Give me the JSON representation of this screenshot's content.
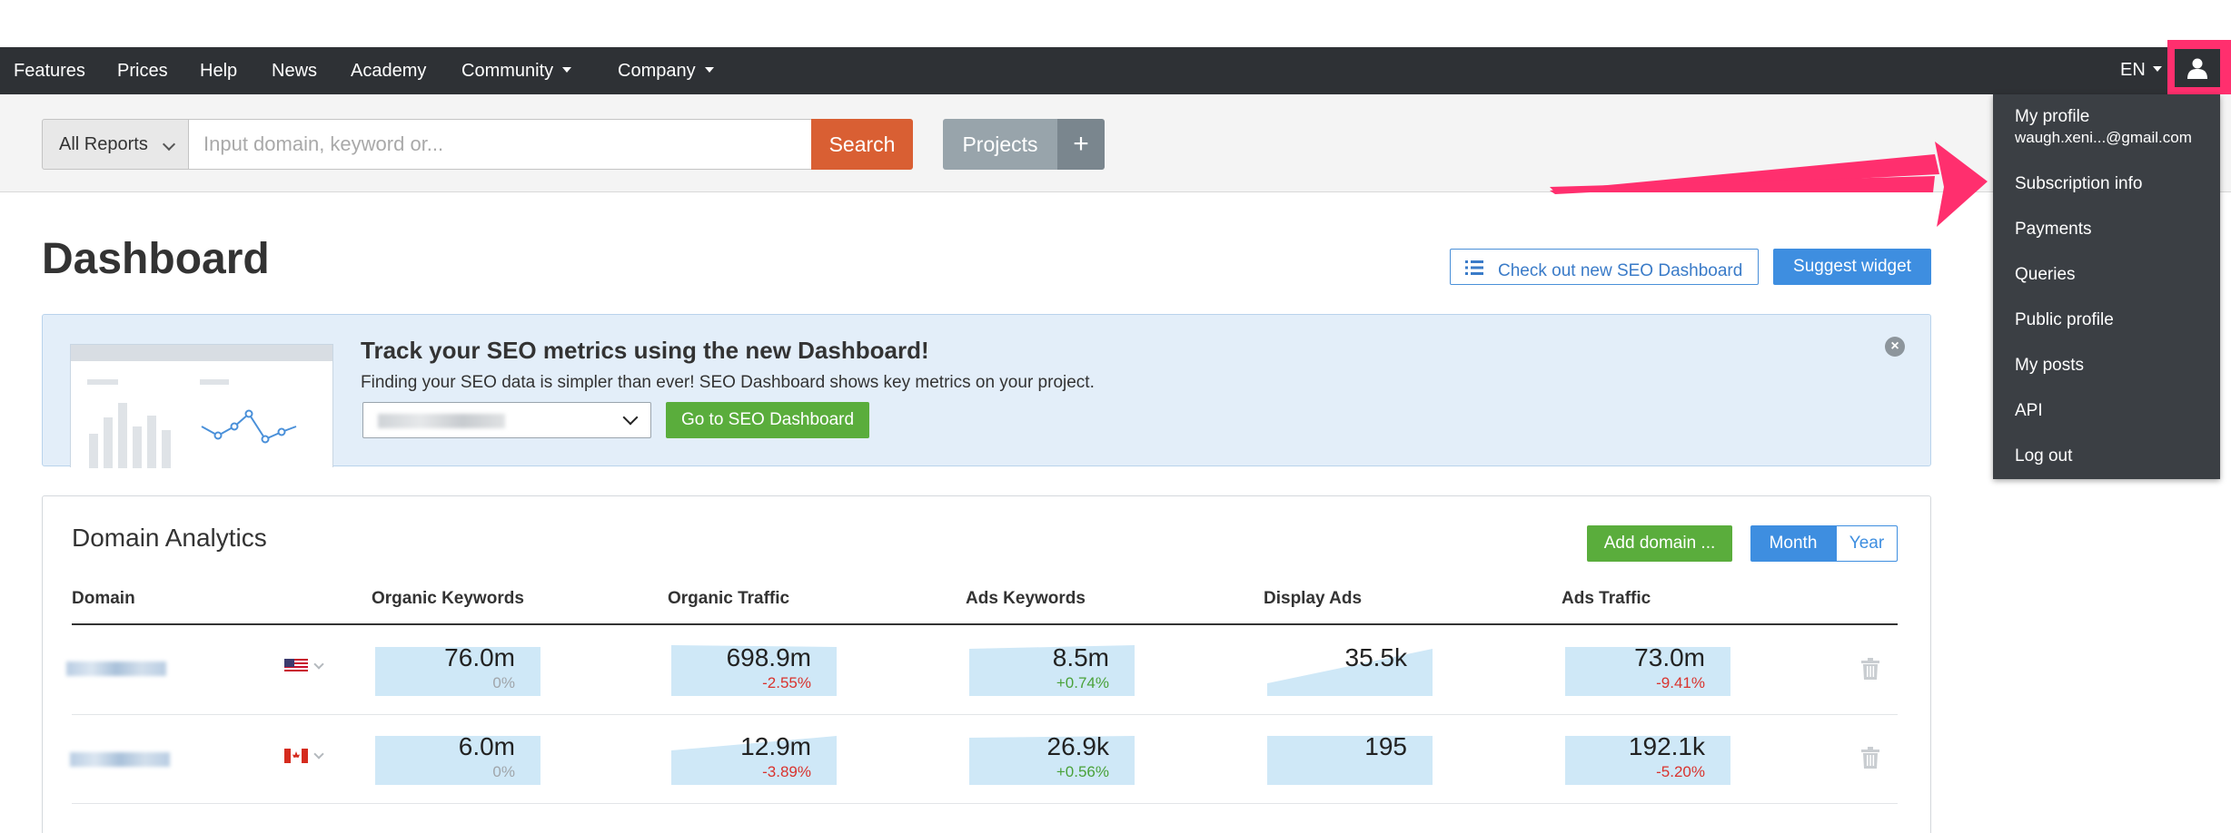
{
  "nav": {
    "items": [
      "Features",
      "Prices",
      "Help",
      "News",
      "Academy",
      "Community",
      "Company"
    ],
    "language": "EN"
  },
  "search": {
    "reports_label": "All Reports",
    "placeholder": "Input domain, keyword or...",
    "search_label": "Search",
    "projects_label": "Projects",
    "plus_label": "+"
  },
  "page": {
    "title": "Dashboard",
    "seo_dashboard_button": "Check out new SEO Dashboard",
    "suggest_widget_button": "Suggest widget"
  },
  "banner": {
    "title": "Track your SEO metrics using the new Dashboard!",
    "text": "Finding your SEO data is simpler than ever! SEO Dashboard shows key metrics on your project.",
    "button": "Go to SEO Dashboard"
  },
  "domain_analytics": {
    "title": "Domain Analytics",
    "add_domain_button": "Add domain ...",
    "period_month": "Month",
    "period_year": "Year",
    "columns": [
      "Domain",
      "Organic Keywords",
      "Organic Traffic",
      "Ads Keywords",
      "Display Ads",
      "Ads Traffic"
    ],
    "rows": [
      {
        "flag": "us-flag-icon",
        "metrics": [
          {
            "value": "76.0m",
            "change": "0%",
            "trend": "neutral"
          },
          {
            "value": "698.9m",
            "change": "-2.55%",
            "trend": "neg"
          },
          {
            "value": "8.5m",
            "change": "+0.74%",
            "trend": "pos"
          },
          {
            "value": "35.5k",
            "change": "",
            "trend": "neutral"
          },
          {
            "value": "73.0m",
            "change": "-9.41%",
            "trend": "neg"
          }
        ]
      },
      {
        "flag": "ca-flag-icon",
        "metrics": [
          {
            "value": "6.0m",
            "change": "0%",
            "trend": "neutral"
          },
          {
            "value": "12.9m",
            "change": "-3.89%",
            "trend": "neg"
          },
          {
            "value": "26.9k",
            "change": "+0.56%",
            "trend": "pos"
          },
          {
            "value": "195",
            "change": "",
            "trend": "neutral"
          },
          {
            "value": "192.1k",
            "change": "-5.20%",
            "trend": "neg"
          }
        ]
      }
    ]
  },
  "user_menu": {
    "items": [
      "My profile",
      "Subscription info",
      "Payments",
      "Queries",
      "Public profile",
      "My posts",
      "API",
      "Log out"
    ],
    "email": "waugh.xeni...@gmail.com"
  },
  "colors": {
    "nav_bg": "#2e3135",
    "accent_pink": "#ff2f6e",
    "search_orange": "#d95f33",
    "primary_blue": "#3e8ee0",
    "success_green": "#5aad3c",
    "sparkline_fill": "#cfe8f7"
  }
}
